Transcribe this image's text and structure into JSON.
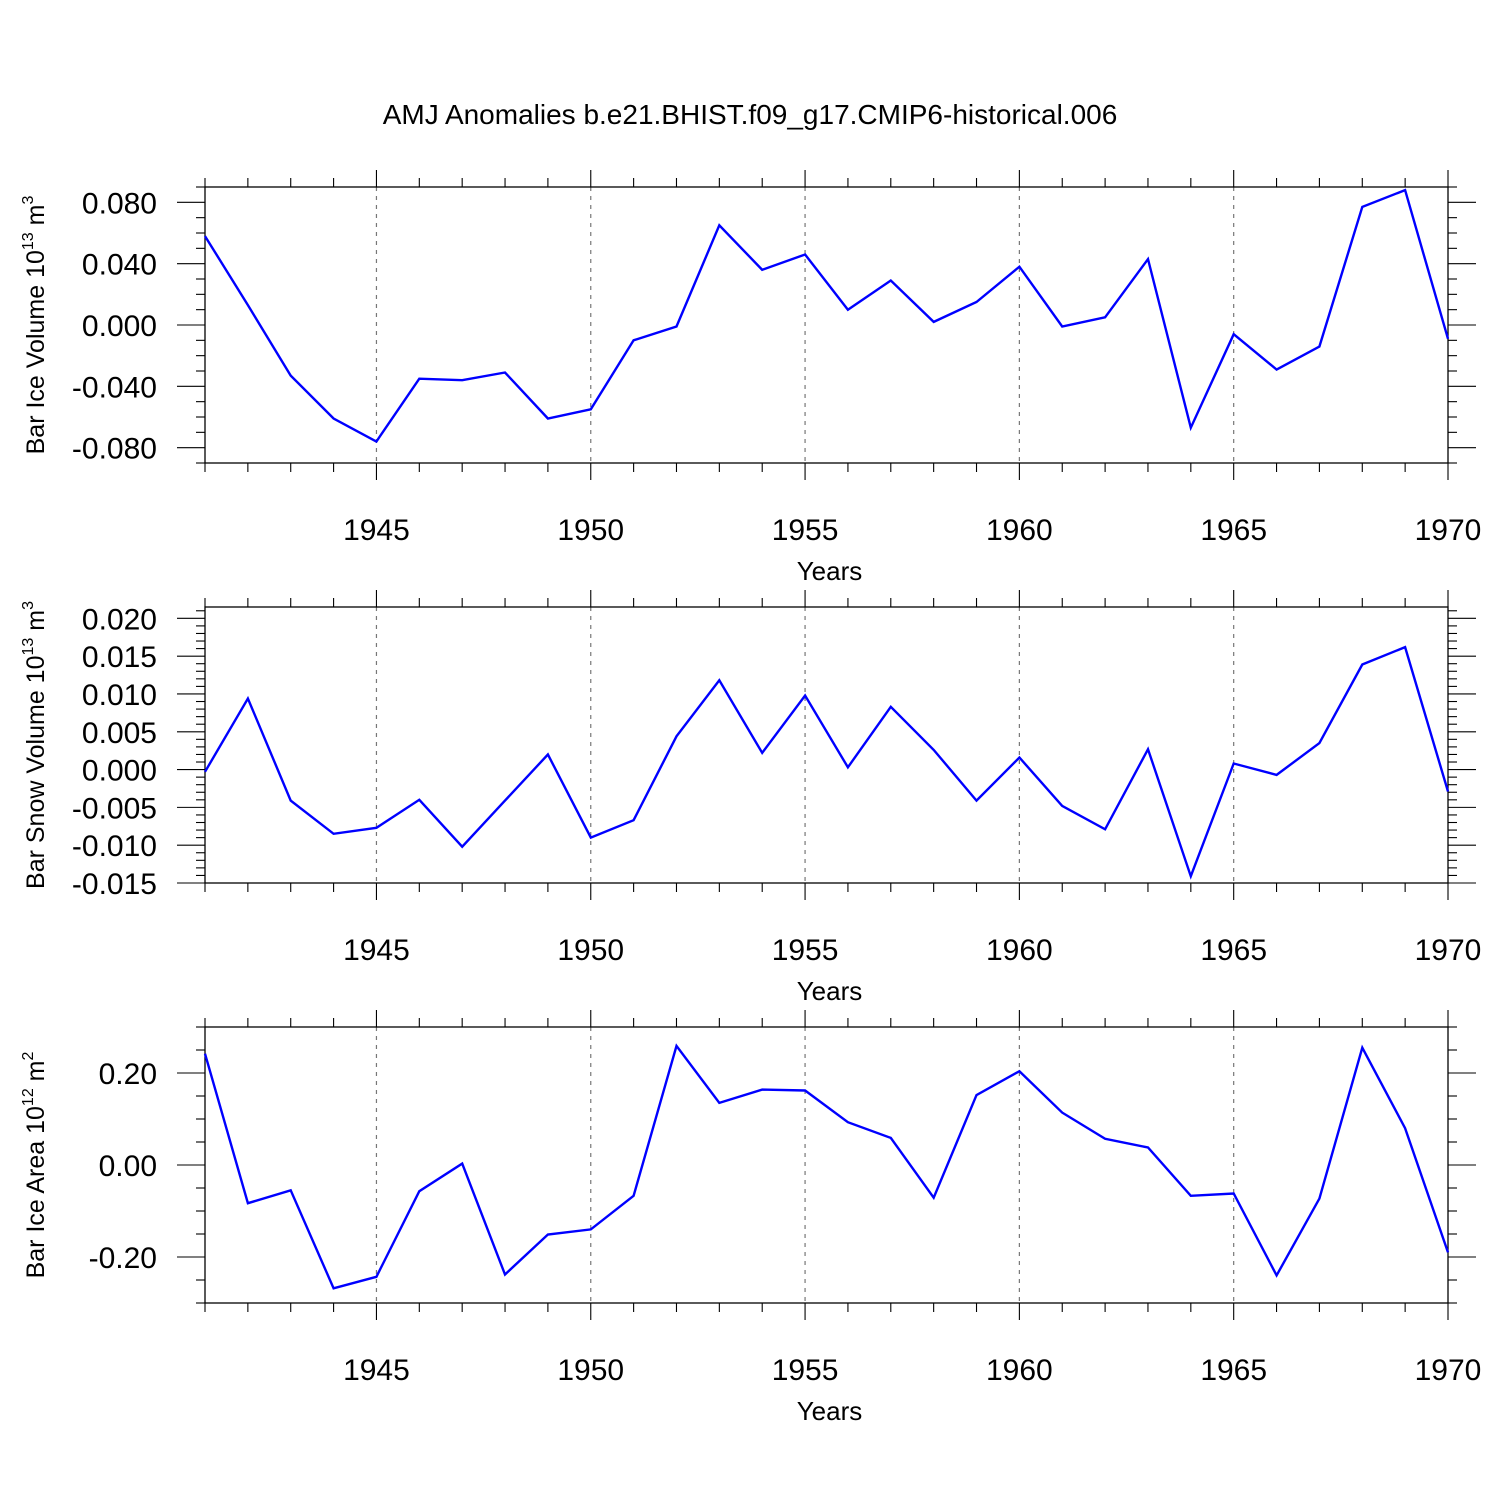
{
  "figure_title": "AMJ Anomalies b.e21.BHIST.f09_g17.CMIP6-historical.006",
  "line_color": "#0000ff",
  "chart_data": [
    {
      "type": "line",
      "title": "AMJ Anomalies b.e21.BHIST.f09_g17.CMIP6-historical.006",
      "ylabel": {
        "main": "Bar Ice Volume 10",
        "exp": "13",
        "unit": " m",
        "unit_exp": "3"
      },
      "xlabel": "Years",
      "xlim": [
        1941,
        1970
      ],
      "ylim": [
        -0.09,
        0.09
      ],
      "yticks": [
        -0.08,
        -0.04,
        0.0,
        0.04,
        0.08
      ],
      "ytick_labels": [
        "-0.080",
        "-0.040",
        "0.000",
        "0.040",
        "0.080"
      ],
      "yminor_step": 0.01,
      "xticks": [
        1945,
        1950,
        1955,
        1960,
        1965,
        1970
      ],
      "xtick_labels": [
        "1945",
        "1950",
        "1955",
        "1960",
        "1965",
        "1970"
      ],
      "x": [
        1941,
        1942,
        1943,
        1944,
        1945,
        1946,
        1947,
        1948,
        1949,
        1950,
        1951,
        1952,
        1953,
        1954,
        1955,
        1956,
        1957,
        1958,
        1959,
        1960,
        1961,
        1962,
        1963,
        1964,
        1965,
        1966,
        1967,
        1968,
        1969,
        1970
      ],
      "values": [
        0.058,
        0.013,
        -0.033,
        -0.061,
        -0.076,
        -0.035,
        -0.036,
        -0.031,
        -0.061,
        -0.055,
        -0.01,
        -0.001,
        0.065,
        0.036,
        0.046,
        0.01,
        0.029,
        0.002,
        0.015,
        0.038,
        -0.001,
        0.005,
        0.043,
        -0.067,
        -0.006,
        -0.029,
        -0.014,
        0.077,
        0.088,
        -0.009
      ]
    },
    {
      "type": "line",
      "ylabel": {
        "main": "Bar Snow Volume 10",
        "exp": "13",
        "unit": " m",
        "unit_exp": "3"
      },
      "xlabel": "Years",
      "xlim": [
        1941,
        1970
      ],
      "ylim": [
        -0.015,
        0.0215
      ],
      "yticks": [
        -0.015,
        -0.01,
        -0.005,
        0.0,
        0.005,
        0.01,
        0.015,
        0.02
      ],
      "ytick_labels": [
        "-0.015",
        "-0.010",
        "-0.005",
        "0.000",
        "0.005",
        "0.010",
        "0.015",
        "0.020"
      ],
      "yminor_step": 0.001,
      "xticks": [
        1945,
        1950,
        1955,
        1960,
        1965,
        1970
      ],
      "xtick_labels": [
        "1945",
        "1950",
        "1955",
        "1960",
        "1965",
        "1970"
      ],
      "x": [
        1941,
        1942,
        1943,
        1944,
        1945,
        1946,
        1947,
        1948,
        1949,
        1950,
        1951,
        1952,
        1953,
        1954,
        1955,
        1956,
        1957,
        1958,
        1959,
        1960,
        1961,
        1962,
        1963,
        1964,
        1965,
        1966,
        1967,
        1968,
        1969,
        1970
      ],
      "values": [
        -0.0003,
        0.0094,
        -0.0041,
        -0.0085,
        -0.0077,
        -0.004,
        -0.0102,
        -0.0041,
        0.002,
        -0.009,
        -0.0067,
        0.0044,
        0.0118,
        0.0022,
        0.0098,
        0.0003,
        0.0083,
        0.0026,
        -0.0041,
        0.0016,
        -0.0048,
        -0.0079,
        0.0027,
        -0.0141,
        0.0008,
        -0.0007,
        0.0035,
        0.0139,
        0.0162,
        -0.0029
      ]
    },
    {
      "type": "line",
      "ylabel": {
        "main": "Bar Ice Area 10",
        "exp": "12",
        "unit": " m",
        "unit_exp": "2"
      },
      "xlabel": "Years",
      "xlim": [
        1941,
        1970
      ],
      "ylim": [
        -0.3,
        0.3
      ],
      "yticks": [
        -0.2,
        0.0,
        0.2
      ],
      "ytick_labels": [
        "-0.20",
        "0.00",
        "0.20"
      ],
      "yminor_step": 0.05,
      "xticks": [
        1945,
        1950,
        1955,
        1960,
        1965,
        1970
      ],
      "xtick_labels": [
        "1945",
        "1950",
        "1955",
        "1960",
        "1965",
        "1970"
      ],
      "x": [
        1941,
        1942,
        1943,
        1944,
        1945,
        1946,
        1947,
        1948,
        1949,
        1950,
        1951,
        1952,
        1953,
        1954,
        1955,
        1956,
        1957,
        1958,
        1959,
        1960,
        1961,
        1962,
        1963,
        1964,
        1965,
        1966,
        1967,
        1968,
        1969,
        1970
      ],
      "values": [
        0.242,
        -0.083,
        -0.055,
        -0.268,
        -0.243,
        -0.057,
        0.003,
        -0.238,
        -0.151,
        -0.14,
        -0.067,
        0.259,
        0.135,
        0.164,
        0.162,
        0.093,
        0.059,
        -0.071,
        0.152,
        0.204,
        0.114,
        0.057,
        0.038,
        -0.067,
        -0.062,
        -0.24,
        -0.073,
        0.255,
        0.08,
        -0.19
      ]
    }
  ]
}
